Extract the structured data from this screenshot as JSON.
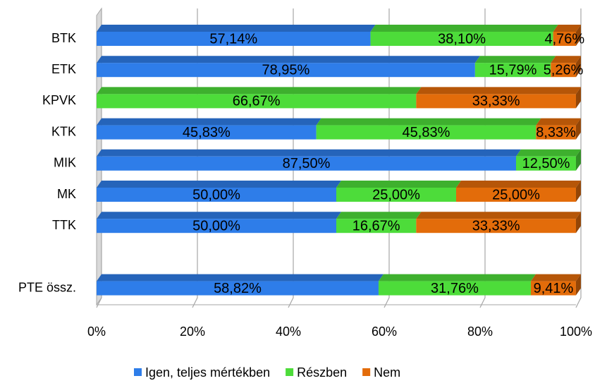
{
  "chart_data": {
    "type": "bar",
    "categories": [
      "BTK",
      "ETK",
      "KPVK",
      "KTK",
      "MIK",
      "MK",
      "TTK",
      null,
      "PTE össz."
    ],
    "series": [
      {
        "name": "Igen, teljes mértékben",
        "color": "#2e7de9",
        "values": [
          57.14,
          78.95,
          0,
          45.83,
          87.5,
          50,
          50,
          null,
          58.82
        ],
        "value_labels": [
          "57,14%",
          "78,95%",
          null,
          "45,83%",
          "87,50%",
          "50,00%",
          "50,00%",
          null,
          "58,82%"
        ]
      },
      {
        "name": "Részben",
        "color": "#4ddc3a",
        "values": [
          38.1,
          15.79,
          66.67,
          45.83,
          12.5,
          25,
          16.67,
          null,
          31.76
        ],
        "value_labels": [
          "38,10%",
          "15,79%",
          "66,67%",
          "45,83%",
          "12,50%",
          "25,00%",
          "16,67%",
          null,
          "31,76%"
        ]
      },
      {
        "name": "Nem",
        "color": "#e36c0a",
        "values": [
          4.76,
          5.26,
          33.33,
          8.33,
          0,
          25,
          33.33,
          null,
          9.41
        ],
        "value_labels": [
          "4,76%",
          "5,26%",
          "33,33%",
          "8,33%",
          null,
          "25,00%",
          "33,33%",
          null,
          "9,41%"
        ]
      }
    ],
    "xlim": [
      0,
      100
    ],
    "xticks": [
      {
        "value": 0,
        "label": "0%"
      },
      {
        "value": 20,
        "label": "20%"
      },
      {
        "value": 40,
        "label": "40%"
      },
      {
        "value": 60,
        "label": "60%"
      },
      {
        "value": 80,
        "label": "80%"
      },
      {
        "value": 100,
        "label": "100%"
      }
    ],
    "grid": true,
    "legend": "bottom"
  }
}
